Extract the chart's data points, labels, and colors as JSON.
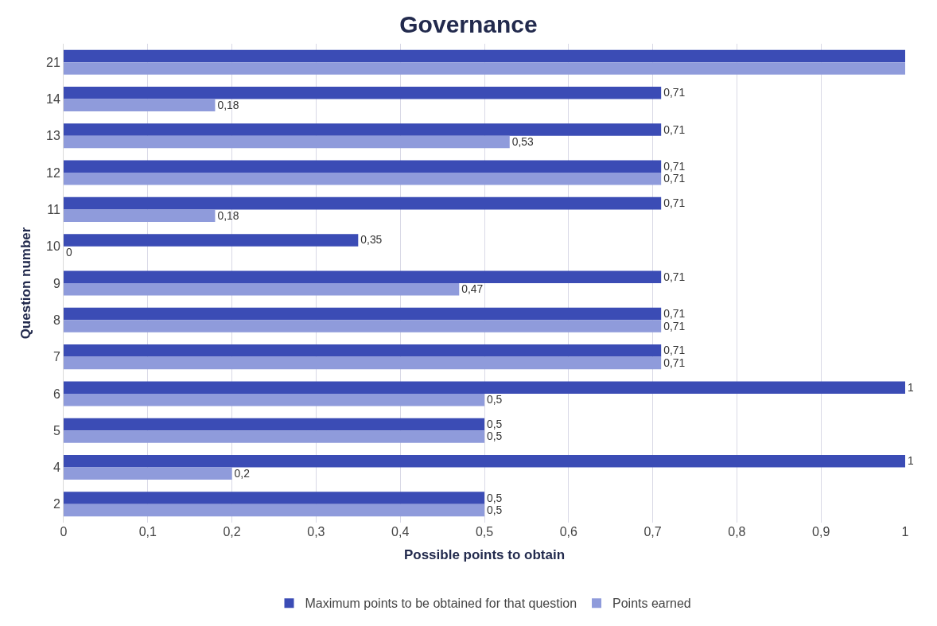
{
  "chart_data": {
    "type": "bar",
    "orientation": "horizontal",
    "title": "Governance",
    "xlabel": "Possible points to obtain",
    "ylabel": "Question number",
    "categories": [
      "21",
      "14",
      "13",
      "12",
      "11",
      "10",
      "9",
      "8",
      "7",
      "6",
      "5",
      "4",
      "2"
    ],
    "series": [
      {
        "name": "Maximum points to be obtained for that question",
        "color": "#3b4cb5",
        "values": [
          1,
          0.71,
          0.71,
          0.71,
          0.71,
          0.35,
          0.71,
          0.71,
          0.71,
          1,
          0.5,
          1,
          0.5
        ],
        "value_labels": [
          null,
          "0,71",
          "0,71",
          "0,71",
          "0,71",
          "0,35",
          "0,71",
          "0,71",
          "0,71",
          "1",
          "0,5",
          "1",
          "0,5"
        ]
      },
      {
        "name": "Points earned",
        "color": "#8f9bdb",
        "values": [
          1,
          0.18,
          0.53,
          0.71,
          0.18,
          0,
          0.47,
          0.71,
          0.71,
          0.5,
          0.5,
          0.2,
          0.5
        ],
        "value_labels": [
          null,
          "0,18",
          "0,53",
          "0,71",
          "0,18",
          "0",
          "0,47",
          "0,71",
          "0,71",
          "0,5",
          "0,5",
          "0,2",
          "0,5"
        ]
      }
    ],
    "xlim": [
      0,
      1
    ],
    "xticks": [
      0,
      {
        "value": 0.1,
        "label": "0,1"
      },
      {
        "value": 0.2,
        "label": "0,2"
      },
      {
        "value": 0.3,
        "label": "0,3"
      },
      {
        "value": 0.4,
        "label": "0,4"
      },
      {
        "value": 0.5,
        "label": "0,5"
      },
      {
        "value": 0.6,
        "label": "0,6"
      },
      {
        "value": 0.7,
        "label": "0,7"
      },
      {
        "value": 0.8,
        "label": "0,8"
      },
      {
        "value": 0.9,
        "label": "0,9"
      },
      1
    ],
    "grid": "x",
    "legend": "bottom"
  }
}
